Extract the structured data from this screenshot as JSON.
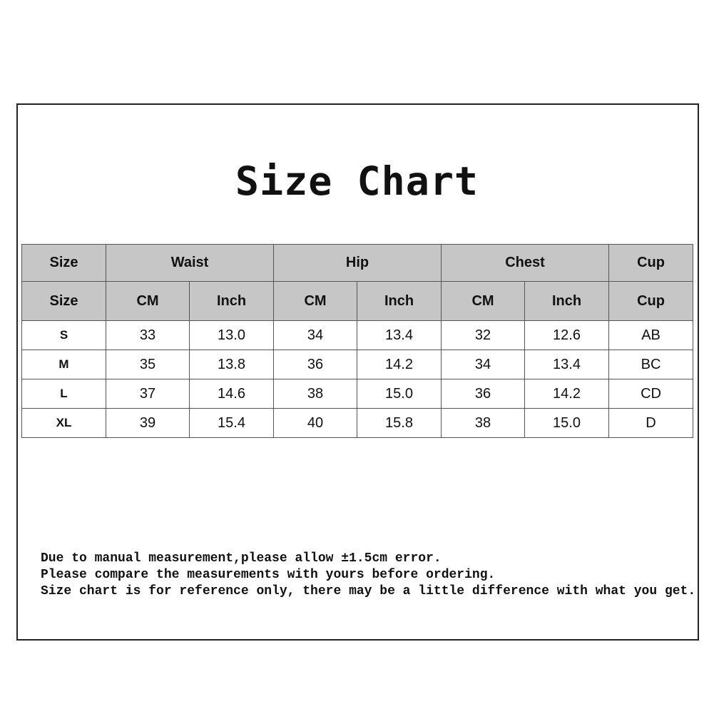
{
  "title": "Size Chart",
  "table": {
    "header_top": [
      "Size",
      "Waist",
      "Hip",
      "Chest",
      "Cup"
    ],
    "header_sub": [
      "Size",
      "CM",
      "Inch",
      "CM",
      "Inch",
      "CM",
      "Inch",
      "Cup"
    ],
    "rows": [
      [
        "S",
        "33",
        "13.0",
        "34",
        "13.4",
        "32",
        "12.6",
        "AB"
      ],
      [
        "M",
        "35",
        "13.8",
        "36",
        "14.2",
        "34",
        "13.4",
        "BC"
      ],
      [
        "L",
        "37",
        "14.6",
        "38",
        "15.0",
        "36",
        "14.2",
        "CD"
      ],
      [
        "XL",
        "39",
        "15.4",
        "40",
        "15.8",
        "38",
        "15.0",
        "D"
      ]
    ]
  },
  "notes": [
    "Due to manual measurement,please allow ±1.5cm error.",
    "Please compare the measurements with yours before ordering.",
    "Size chart is for reference only, there may be a little difference with what you get."
  ],
  "colors": {
    "header_bg": "#c6c6c6",
    "border": "#555555",
    "text": "#111111"
  }
}
